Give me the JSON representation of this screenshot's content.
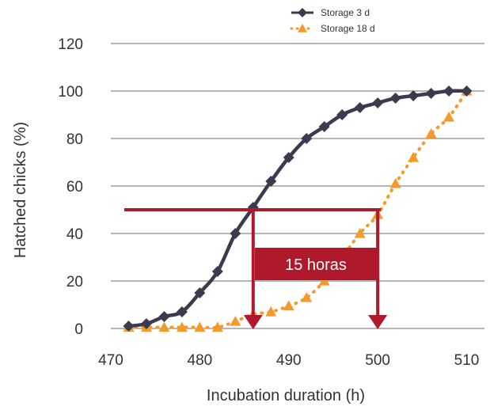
{
  "chart_data": {
    "type": "line",
    "xlabel": "Incubation duration (h)",
    "ylabel": "Hatched chicks (%)",
    "xlim": [
      470,
      512
    ],
    "ylim": [
      0,
      120
    ],
    "x_ticks": [
      470,
      480,
      490,
      500,
      510
    ],
    "y_ticks": [
      0,
      20,
      40,
      60,
      80,
      100,
      120
    ],
    "grid": "horizontal",
    "legend_position": "top",
    "series": [
      {
        "name": "Storage 3 d",
        "color": "#3b3a4f",
        "marker": "diamond",
        "line": "solid",
        "x": [
          472,
          474,
          476,
          478,
          480,
          482,
          484,
          486,
          488,
          490,
          492,
          494,
          496,
          498,
          500,
          502,
          504,
          506,
          508,
          510
        ],
        "y": [
          1,
          2,
          5,
          7,
          15,
          24,
          40,
          51,
          62,
          72,
          80,
          85,
          90,
          93,
          95,
          97,
          98,
          99,
          100,
          100
        ]
      },
      {
        "name": "Storage 18 d",
        "color": "#f39a2b",
        "marker": "triangle",
        "line": "dotted",
        "x": [
          472,
          474,
          476,
          478,
          480,
          482,
          484,
          486,
          488,
          490,
          492,
          494,
          496,
          498,
          500,
          502,
          504,
          506,
          508,
          510
        ],
        "y": [
          0.5,
          0.5,
          0.5,
          0.5,
          0.5,
          0.5,
          3,
          6,
          7,
          9.5,
          13,
          20,
          30,
          40,
          48,
          61,
          72,
          82,
          89,
          100
        ]
      }
    ],
    "annotation": {
      "text": "15 horas",
      "y_level": 50,
      "x_start": 486,
      "x_end": 500,
      "color": "#b0182b"
    }
  }
}
